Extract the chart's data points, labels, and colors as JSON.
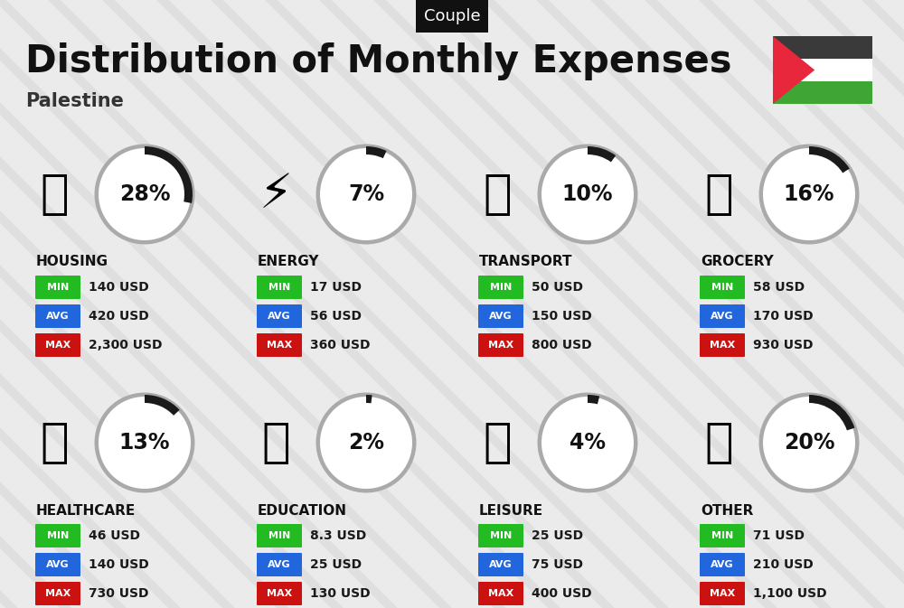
{
  "title": "Distribution of Monthly Expenses",
  "subtitle": "Palestine",
  "tag": "Couple",
  "bg_color": "#ebebeb",
  "categories": [
    {
      "name": "HOUSING",
      "pct": 28,
      "min": "140 USD",
      "avg": "420 USD",
      "max": "2,300 USD",
      "col": 0,
      "row": 0
    },
    {
      "name": "ENERGY",
      "pct": 7,
      "min": "17 USD",
      "avg": "56 USD",
      "max": "360 USD",
      "col": 1,
      "row": 0
    },
    {
      "name": "TRANSPORT",
      "pct": 10,
      "min": "50 USD",
      "avg": "150 USD",
      "max": "800 USD",
      "col": 2,
      "row": 0
    },
    {
      "name": "GROCERY",
      "pct": 16,
      "min": "58 USD",
      "avg": "170 USD",
      "max": "930 USD",
      "col": 3,
      "row": 0
    },
    {
      "name": "HEALTHCARE",
      "pct": 13,
      "min": "46 USD",
      "avg": "140 USD",
      "max": "730 USD",
      "col": 0,
      "row": 1
    },
    {
      "name": "EDUCATION",
      "pct": 2,
      "min": "8.3 USD",
      "avg": "25 USD",
      "max": "130 USD",
      "col": 1,
      "row": 1
    },
    {
      "name": "LEISURE",
      "pct": 4,
      "min": "25 USD",
      "avg": "75 USD",
      "max": "400 USD",
      "col": 2,
      "row": 1
    },
    {
      "name": "OTHER",
      "pct": 20,
      "min": "71 USD",
      "avg": "210 USD",
      "max": "1,100 USD",
      "col": 3,
      "row": 1
    }
  ],
  "color_min": "#22bb22",
  "color_avg": "#2266dd",
  "color_max": "#cc1111",
  "circle_gray": "#aaaaaa",
  "circle_dark": "#1a1a1a",
  "tag_bg": "#111111",
  "tag_fg": "#ffffff",
  "title_fontsize": 30,
  "subtitle_fontsize": 15,
  "pct_fontsize": 17,
  "cat_fontsize": 11,
  "badge_fontsize": 8,
  "val_fontsize": 10,
  "stripe_color": "#d5d5d5",
  "flag_black": "#3a3a3a",
  "flag_white": "#ffffff",
  "flag_green": "#3fa535",
  "flag_red": "#e8273d"
}
